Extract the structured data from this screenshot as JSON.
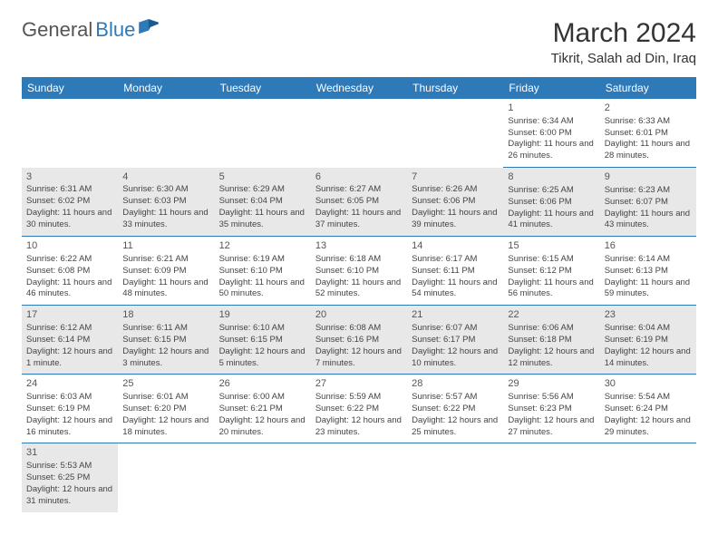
{
  "brand": {
    "part1": "General",
    "part2": "Blue"
  },
  "title": "March 2024",
  "location": "Tikrit, Salah ad Din, Iraq",
  "colors": {
    "header_bg": "#2e79b8",
    "header_fg": "#ffffff",
    "row_shade": "#e8e8e8",
    "row_alt": "#ffffff",
    "border": "#2e79b8"
  },
  "weekdays": [
    "Sunday",
    "Monday",
    "Tuesday",
    "Wednesday",
    "Thursday",
    "Friday",
    "Saturday"
  ],
  "weeks": [
    [
      null,
      null,
      null,
      null,
      null,
      {
        "day": "1",
        "sunrise": "Sunrise: 6:34 AM",
        "sunset": "Sunset: 6:00 PM",
        "daylight": "Daylight: 11 hours and 26 minutes."
      },
      {
        "day": "2",
        "sunrise": "Sunrise: 6:33 AM",
        "sunset": "Sunset: 6:01 PM",
        "daylight": "Daylight: 11 hours and 28 minutes."
      }
    ],
    [
      {
        "day": "3",
        "sunrise": "Sunrise: 6:31 AM",
        "sunset": "Sunset: 6:02 PM",
        "daylight": "Daylight: 11 hours and 30 minutes."
      },
      {
        "day": "4",
        "sunrise": "Sunrise: 6:30 AM",
        "sunset": "Sunset: 6:03 PM",
        "daylight": "Daylight: 11 hours and 33 minutes."
      },
      {
        "day": "5",
        "sunrise": "Sunrise: 6:29 AM",
        "sunset": "Sunset: 6:04 PM",
        "daylight": "Daylight: 11 hours and 35 minutes."
      },
      {
        "day": "6",
        "sunrise": "Sunrise: 6:27 AM",
        "sunset": "Sunset: 6:05 PM",
        "daylight": "Daylight: 11 hours and 37 minutes."
      },
      {
        "day": "7",
        "sunrise": "Sunrise: 6:26 AM",
        "sunset": "Sunset: 6:06 PM",
        "daylight": "Daylight: 11 hours and 39 minutes."
      },
      {
        "day": "8",
        "sunrise": "Sunrise: 6:25 AM",
        "sunset": "Sunset: 6:06 PM",
        "daylight": "Daylight: 11 hours and 41 minutes."
      },
      {
        "day": "9",
        "sunrise": "Sunrise: 6:23 AM",
        "sunset": "Sunset: 6:07 PM",
        "daylight": "Daylight: 11 hours and 43 minutes."
      }
    ],
    [
      {
        "day": "10",
        "sunrise": "Sunrise: 6:22 AM",
        "sunset": "Sunset: 6:08 PM",
        "daylight": "Daylight: 11 hours and 46 minutes."
      },
      {
        "day": "11",
        "sunrise": "Sunrise: 6:21 AM",
        "sunset": "Sunset: 6:09 PM",
        "daylight": "Daylight: 11 hours and 48 minutes."
      },
      {
        "day": "12",
        "sunrise": "Sunrise: 6:19 AM",
        "sunset": "Sunset: 6:10 PM",
        "daylight": "Daylight: 11 hours and 50 minutes."
      },
      {
        "day": "13",
        "sunrise": "Sunrise: 6:18 AM",
        "sunset": "Sunset: 6:10 PM",
        "daylight": "Daylight: 11 hours and 52 minutes."
      },
      {
        "day": "14",
        "sunrise": "Sunrise: 6:17 AM",
        "sunset": "Sunset: 6:11 PM",
        "daylight": "Daylight: 11 hours and 54 minutes."
      },
      {
        "day": "15",
        "sunrise": "Sunrise: 6:15 AM",
        "sunset": "Sunset: 6:12 PM",
        "daylight": "Daylight: 11 hours and 56 minutes."
      },
      {
        "day": "16",
        "sunrise": "Sunrise: 6:14 AM",
        "sunset": "Sunset: 6:13 PM",
        "daylight": "Daylight: 11 hours and 59 minutes."
      }
    ],
    [
      {
        "day": "17",
        "sunrise": "Sunrise: 6:12 AM",
        "sunset": "Sunset: 6:14 PM",
        "daylight": "Daylight: 12 hours and 1 minute."
      },
      {
        "day": "18",
        "sunrise": "Sunrise: 6:11 AM",
        "sunset": "Sunset: 6:15 PM",
        "daylight": "Daylight: 12 hours and 3 minutes."
      },
      {
        "day": "19",
        "sunrise": "Sunrise: 6:10 AM",
        "sunset": "Sunset: 6:15 PM",
        "daylight": "Daylight: 12 hours and 5 minutes."
      },
      {
        "day": "20",
        "sunrise": "Sunrise: 6:08 AM",
        "sunset": "Sunset: 6:16 PM",
        "daylight": "Daylight: 12 hours and 7 minutes."
      },
      {
        "day": "21",
        "sunrise": "Sunrise: 6:07 AM",
        "sunset": "Sunset: 6:17 PM",
        "daylight": "Daylight: 12 hours and 10 minutes."
      },
      {
        "day": "22",
        "sunrise": "Sunrise: 6:06 AM",
        "sunset": "Sunset: 6:18 PM",
        "daylight": "Daylight: 12 hours and 12 minutes."
      },
      {
        "day": "23",
        "sunrise": "Sunrise: 6:04 AM",
        "sunset": "Sunset: 6:19 PM",
        "daylight": "Daylight: 12 hours and 14 minutes."
      }
    ],
    [
      {
        "day": "24",
        "sunrise": "Sunrise: 6:03 AM",
        "sunset": "Sunset: 6:19 PM",
        "daylight": "Daylight: 12 hours and 16 minutes."
      },
      {
        "day": "25",
        "sunrise": "Sunrise: 6:01 AM",
        "sunset": "Sunset: 6:20 PM",
        "daylight": "Daylight: 12 hours and 18 minutes."
      },
      {
        "day": "26",
        "sunrise": "Sunrise: 6:00 AM",
        "sunset": "Sunset: 6:21 PM",
        "daylight": "Daylight: 12 hours and 20 minutes."
      },
      {
        "day": "27",
        "sunrise": "Sunrise: 5:59 AM",
        "sunset": "Sunset: 6:22 PM",
        "daylight": "Daylight: 12 hours and 23 minutes."
      },
      {
        "day": "28",
        "sunrise": "Sunrise: 5:57 AM",
        "sunset": "Sunset: 6:22 PM",
        "daylight": "Daylight: 12 hours and 25 minutes."
      },
      {
        "day": "29",
        "sunrise": "Sunrise: 5:56 AM",
        "sunset": "Sunset: 6:23 PM",
        "daylight": "Daylight: 12 hours and 27 minutes."
      },
      {
        "day": "30",
        "sunrise": "Sunrise: 5:54 AM",
        "sunset": "Sunset: 6:24 PM",
        "daylight": "Daylight: 12 hours and 29 minutes."
      }
    ],
    [
      {
        "day": "31",
        "sunrise": "Sunrise: 5:53 AM",
        "sunset": "Sunset: 6:25 PM",
        "daylight": "Daylight: 12 hours and 31 minutes."
      },
      null,
      null,
      null,
      null,
      null,
      null
    ]
  ]
}
